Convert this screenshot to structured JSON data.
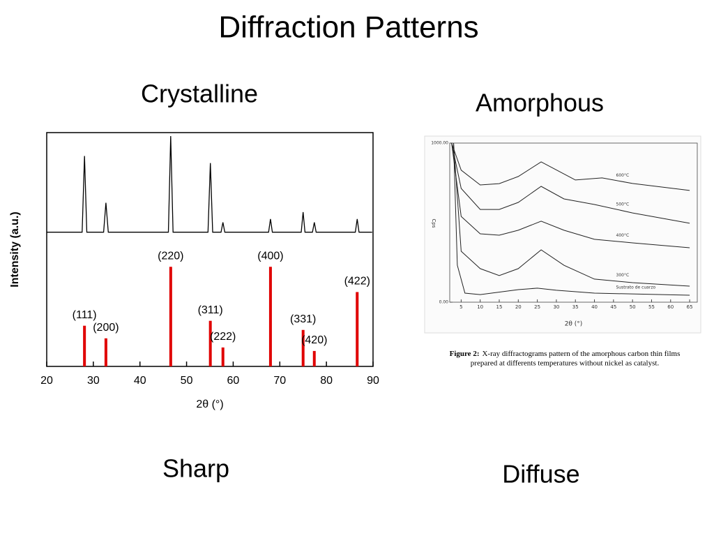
{
  "slide": {
    "title": "Diffraction Patterns",
    "left_heading": "Crystalline",
    "right_heading": "Amorphous",
    "left_caption": "Sharp",
    "right_caption": "Diffuse"
  },
  "chart_data": [
    {
      "type": "stick",
      "xlabel": "2θ (°)",
      "ylabel": "Intensity (a.u.)",
      "xlim": [
        20,
        90
      ],
      "xticks": [
        20,
        30,
        40,
        50,
        60,
        70,
        80,
        90
      ],
      "ylim": [
        0,
        100
      ],
      "trace": {
        "color": "#000000",
        "x": [
          20,
          27.6,
          28.1,
          28.6,
          32.2,
          32.7,
          33.2,
          46.1,
          46.6,
          47.1,
          54.6,
          55.1,
          55.6,
          57.4,
          57.8,
          58.2,
          67.6,
          68.0,
          68.4,
          74.6,
          75.0,
          75.4,
          77.0,
          77.4,
          77.8,
          86.2,
          86.6,
          87.0,
          89.8
        ],
        "values": [
          57.4,
          57.4,
          90,
          57.4,
          57.4,
          70,
          57.4,
          57.4,
          98.5,
          57.4,
          57.4,
          87,
          57.4,
          57.4,
          61.6,
          57.4,
          57.4,
          63,
          57.4,
          57.4,
          66,
          57.4,
          57.4,
          61.6,
          57.4,
          57.4,
          63,
          57.4,
          57.4
        ]
      },
      "sticks": {
        "color": "#e00000",
        "x": [
          28.1,
          32.7,
          46.6,
          55.1,
          57.8,
          68.0,
          75.0,
          77.4,
          86.6
        ],
        "values": [
          17.4,
          12,
          42.6,
          19.5,
          8.1,
          42.6,
          15.6,
          6.6,
          31.8
        ],
        "labels": [
          "(111)",
          "(200)",
          "(220)",
          "(311)",
          "(222)",
          "(400)",
          "(331)",
          "(420)",
          "(422)"
        ]
      }
    },
    {
      "type": "line",
      "xlabel": "2θ (°)",
      "ylabel": "Cps",
      "xlim": [
        2,
        67
      ],
      "xticks": [
        5,
        10,
        15,
        20,
        25,
        30,
        35,
        40,
        45,
        50,
        55,
        60,
        65
      ],
      "ylim": [
        0,
        1000
      ],
      "yticks": [
        {
          "value": 0,
          "label": "0.00"
        },
        {
          "value": 1000,
          "label": "1000.00"
        }
      ],
      "series": [
        {
          "name": "600°C",
          "color": "#222222",
          "x": [
            2.5,
            5,
            10,
            15,
            20,
            26,
            35,
            42,
            50,
            65
          ],
          "values": [
            1000,
            830,
            737,
            745,
            790,
            882,
            768,
            781,
            746,
            702
          ]
        },
        {
          "name": "500°C",
          "color": "#222222",
          "x": [
            2.5,
            5,
            10,
            15,
            20,
            26,
            32,
            40,
            50,
            65
          ],
          "values": [
            1000,
            715,
            583,
            583,
            627,
            728,
            649,
            614,
            561,
            496
          ]
        },
        {
          "name": "400°C",
          "color": "#222222",
          "x": [
            2.5,
            5,
            10,
            15,
            20,
            26,
            32,
            40,
            50,
            65
          ],
          "values": [
            1000,
            539,
            430,
            421,
            452,
            509,
            452,
            395,
            373,
            342
          ]
        },
        {
          "name": "300°C",
          "color": "#222222",
          "x": [
            3,
            5,
            10,
            15,
            20,
            26,
            32,
            40,
            50,
            65
          ],
          "values": [
            1000,
            320,
            211,
            167,
            211,
            329,
            232,
            145,
            123,
            101
          ]
        },
        {
          "name": "Sustrato de cuarzo",
          "color": "#222222",
          "x": [
            3,
            4,
            6,
            10,
            20,
            25,
            30,
            40,
            65
          ],
          "values": [
            1000,
            232,
            57,
            48,
            79,
            88,
            75,
            57,
            44
          ]
        }
      ],
      "caption": {
        "label": "Figure 2:",
        "lines": [
          "X-ray diffractograms pattern of the amorphous carbon thin films",
          "prepared at differents temperatures without nickel as catalyst."
        ]
      }
    }
  ]
}
